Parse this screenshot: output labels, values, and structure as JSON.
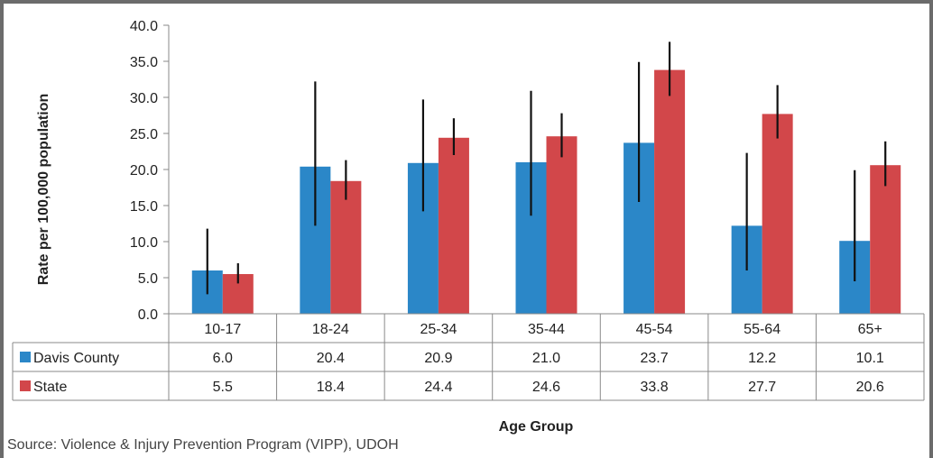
{
  "chart_data": {
    "type": "bar",
    "categories": [
      "10-17",
      "18-24",
      "25-34",
      "35-44",
      "45-54",
      "55-64",
      "65+"
    ],
    "series": [
      {
        "name": "Davis County",
        "color": "#2b87c8",
        "values": [
          6.0,
          20.4,
          20.9,
          21.0,
          23.7,
          12.2,
          10.1
        ],
        "labels": [
          "6.0",
          "20.4",
          "20.9",
          "21.0",
          "23.7",
          "12.2",
          "10.1"
        ],
        "error_low": [
          2.7,
          12.2,
          14.2,
          13.6,
          15.5,
          6.0,
          4.5
        ],
        "error_high": [
          11.8,
          32.2,
          29.7,
          30.9,
          34.9,
          22.3,
          19.9
        ]
      },
      {
        "name": "State",
        "color": "#d2474a",
        "values": [
          5.5,
          18.4,
          24.4,
          24.6,
          33.8,
          27.7,
          20.6
        ],
        "labels": [
          "5.5",
          "18.4",
          "24.4",
          "24.6",
          "33.8",
          "27.7",
          "20.6"
        ],
        "error_low": [
          4.2,
          15.8,
          22.0,
          21.7,
          30.2,
          24.3,
          17.7
        ],
        "error_high": [
          7.0,
          21.3,
          27.1,
          27.8,
          37.7,
          31.7,
          23.9
        ]
      }
    ],
    "ylabel": "Rate per 100,000 population",
    "xlabel": "Age Group",
    "ylim": [
      0,
      40
    ],
    "yticks": [
      "0.0",
      "5.0",
      "10.0",
      "15.0",
      "20.0",
      "25.0",
      "30.0",
      "35.0",
      "40.0"
    ],
    "grid": false,
    "legend": "data-table"
  },
  "source": "Source: Violence & Injury Prevention Program (VIPP), UDOH"
}
